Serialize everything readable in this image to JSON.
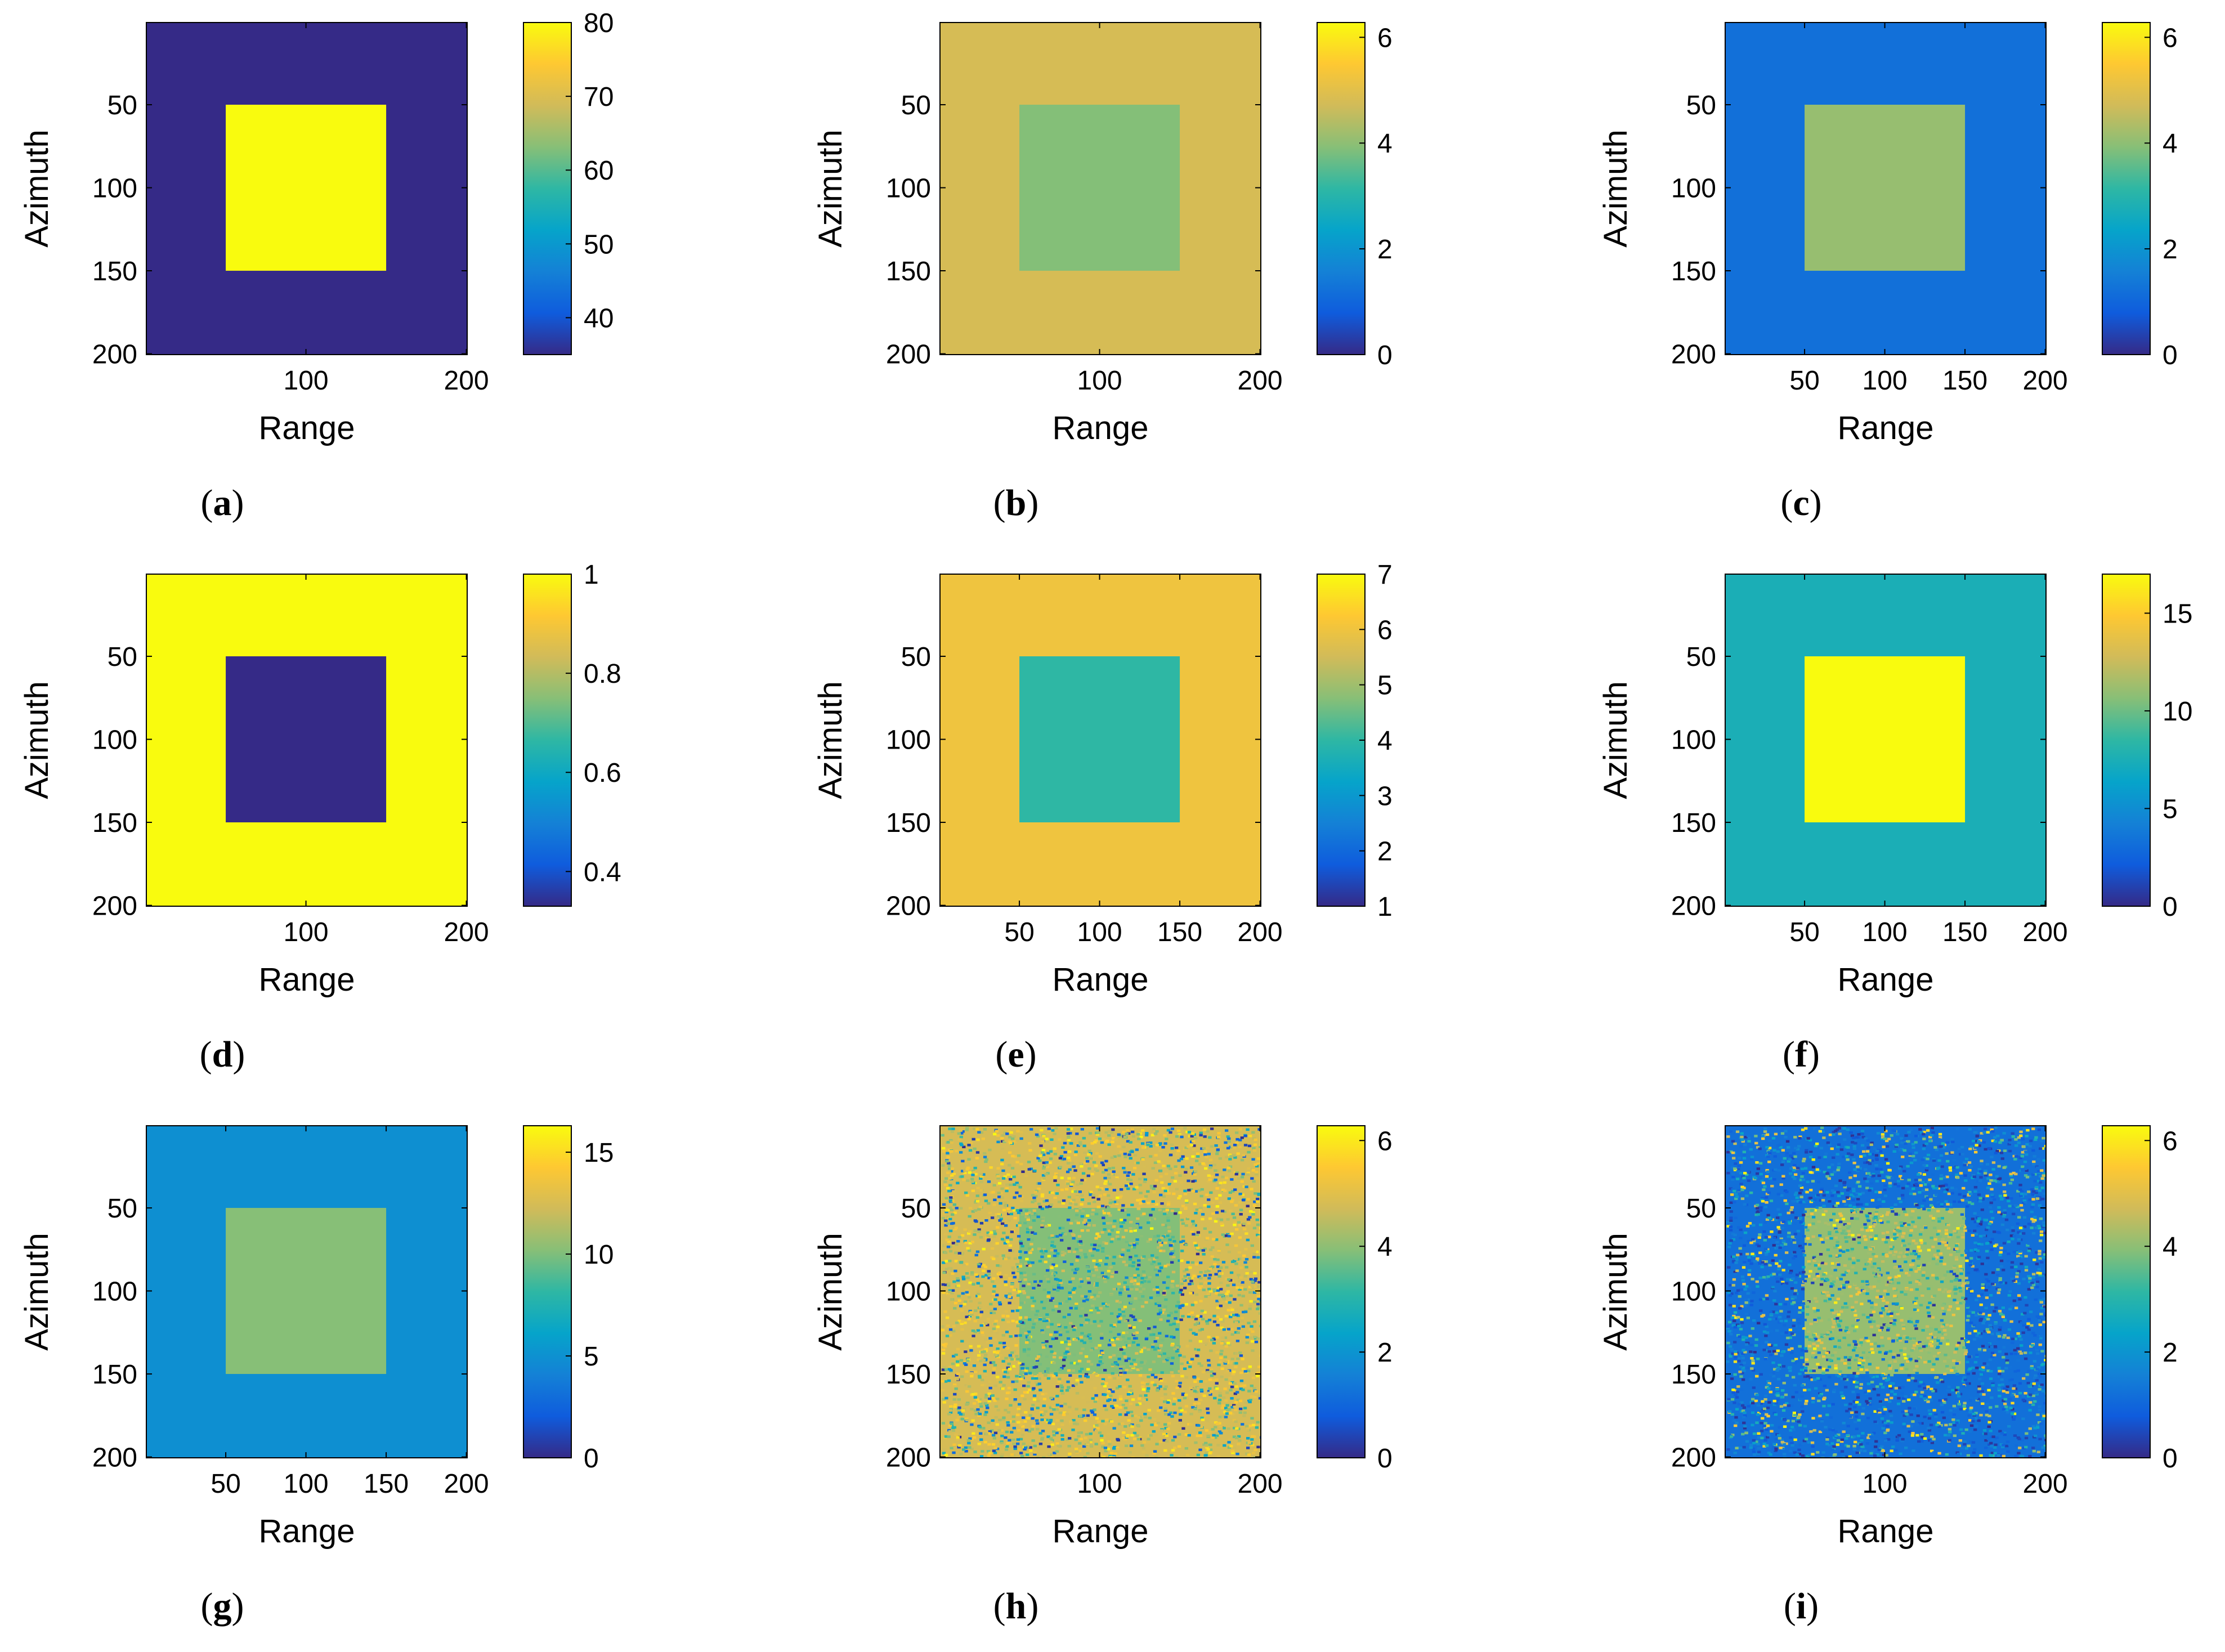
{
  "colors": {
    "axis": "#000000",
    "colormap": [
      "#352a87",
      "#0f5cdd",
      "#1481d6",
      "#06a4ca",
      "#2eb7a4",
      "#87bf77",
      "#d1bb59",
      "#fec832",
      "#f9fb0e"
    ]
  },
  "chart_data": [
    {
      "id": "a",
      "type": "heatmap",
      "caption": "a",
      "xlabel": "Range",
      "ylabel": "Azimuth",
      "xlim": [
        0.5,
        200.5
      ],
      "ylim": [
        0.5,
        200.5
      ],
      "xticks": [
        100,
        200
      ],
      "yticks": [
        50,
        100,
        150,
        200
      ],
      "clim": [
        35,
        80
      ],
      "cticks": [
        40,
        50,
        60,
        70,
        80
      ],
      "background_value": 35,
      "square_value": 80,
      "square_range": [
        50,
        150
      ],
      "noise": 0
    },
    {
      "id": "b",
      "type": "heatmap",
      "caption": "b",
      "xlabel": "Range",
      "ylabel": "Azimuth",
      "xlim": [
        0.5,
        200.5
      ],
      "ylim": [
        0.5,
        200.5
      ],
      "xticks": [
        100,
        200
      ],
      "yticks": [
        50,
        100,
        150,
        200
      ],
      "clim": [
        0,
        6.28
      ],
      "cticks": [
        0,
        2,
        4,
        6
      ],
      "background_value": 4.8,
      "square_value": 3.9,
      "square_range": [
        50,
        150
      ],
      "noise": 0
    },
    {
      "id": "c",
      "type": "heatmap",
      "caption": "c",
      "xlabel": "Range",
      "ylabel": "Azimuth",
      "xlim": [
        0.5,
        200.5
      ],
      "ylim": [
        0.5,
        200.5
      ],
      "xticks": [
        50,
        100,
        150,
        200
      ],
      "yticks": [
        50,
        100,
        150,
        200
      ],
      "clim": [
        0,
        6.28
      ],
      "cticks": [
        0,
        2,
        4,
        6
      ],
      "background_value": 1.2,
      "square_value": 4.1,
      "square_range": [
        50,
        150
      ],
      "noise": 0
    },
    {
      "id": "d",
      "type": "heatmap",
      "caption": "d",
      "xlabel": "Range",
      "ylabel": "Azimuth",
      "xlim": [
        0.5,
        200.5
      ],
      "ylim": [
        0.5,
        200.5
      ],
      "xticks": [
        100,
        200
      ],
      "yticks": [
        50,
        100,
        150,
        200
      ],
      "clim": [
        0.33,
        1.0
      ],
      "cticks": [
        0.4,
        0.6,
        0.8,
        1
      ],
      "background_value": 1.0,
      "square_value": 0.33,
      "square_range": [
        50,
        150
      ],
      "noise": 0
    },
    {
      "id": "e",
      "type": "heatmap",
      "caption": "e",
      "xlabel": "Range",
      "ylabel": "Azimuth",
      "xlim": [
        0.5,
        200.5
      ],
      "ylim": [
        0.5,
        200.5
      ],
      "xticks": [
        50,
        100,
        150,
        200
      ],
      "yticks": [
        50,
        100,
        150,
        200
      ],
      "clim": [
        1,
        7
      ],
      "cticks": [
        1,
        2,
        3,
        4,
        5,
        6,
        7
      ],
      "background_value": 6.0,
      "square_value": 4.0,
      "square_range": [
        50,
        150
      ],
      "noise": 0
    },
    {
      "id": "f",
      "type": "heatmap",
      "caption": "f",
      "xlabel": "Range",
      "ylabel": "Azimuth",
      "xlim": [
        0.5,
        200.5
      ],
      "ylim": [
        0.5,
        200.5
      ],
      "xticks": [
        50,
        100,
        150,
        200
      ],
      "yticks": [
        50,
        100,
        150,
        200
      ],
      "clim": [
        0,
        17
      ],
      "cticks": [
        0,
        5,
        10,
        15
      ],
      "background_value": 7.5,
      "square_value": 17,
      "square_range": [
        50,
        150
      ],
      "noise": 0
    },
    {
      "id": "g",
      "type": "heatmap",
      "caption": "g",
      "xlabel": "Range",
      "ylabel": "Azimuth",
      "xlim": [
        0.5,
        200.5
      ],
      "ylim": [
        0.5,
        200.5
      ],
      "xticks": [
        50,
        100,
        150,
        200
      ],
      "yticks": [
        50,
        100,
        150,
        200
      ],
      "clim": [
        0,
        16.3
      ],
      "cticks": [
        0,
        5,
        10,
        15
      ],
      "background_value": 4.9,
      "square_value": 10.2,
      "square_range": [
        50,
        150
      ],
      "noise": 0
    },
    {
      "id": "h",
      "type": "heatmap",
      "caption": "h",
      "xlabel": "Range",
      "ylabel": "Azimuth",
      "xlim": [
        0.5,
        200.5
      ],
      "ylim": [
        0.5,
        200.5
      ],
      "xticks": [
        100,
        200
      ],
      "yticks": [
        50,
        100,
        150,
        200
      ],
      "clim": [
        0,
        6.28
      ],
      "cticks": [
        0,
        2,
        4,
        6
      ],
      "background_value": 4.8,
      "square_value": 3.9,
      "square_range": [
        50,
        150
      ],
      "noise": 1
    },
    {
      "id": "i",
      "type": "heatmap",
      "caption": "i",
      "xlabel": "Range",
      "ylabel": "Azimuth",
      "xlim": [
        0.5,
        200.5
      ],
      "ylim": [
        0.5,
        200.5
      ],
      "xticks": [
        100,
        200
      ],
      "yticks": [
        50,
        100,
        150,
        200
      ],
      "clim": [
        0,
        6.28
      ],
      "cticks": [
        0,
        2,
        4,
        6
      ],
      "background_value": 1.2,
      "square_value": 4.1,
      "square_range": [
        50,
        150
      ],
      "noise": 1
    }
  ]
}
